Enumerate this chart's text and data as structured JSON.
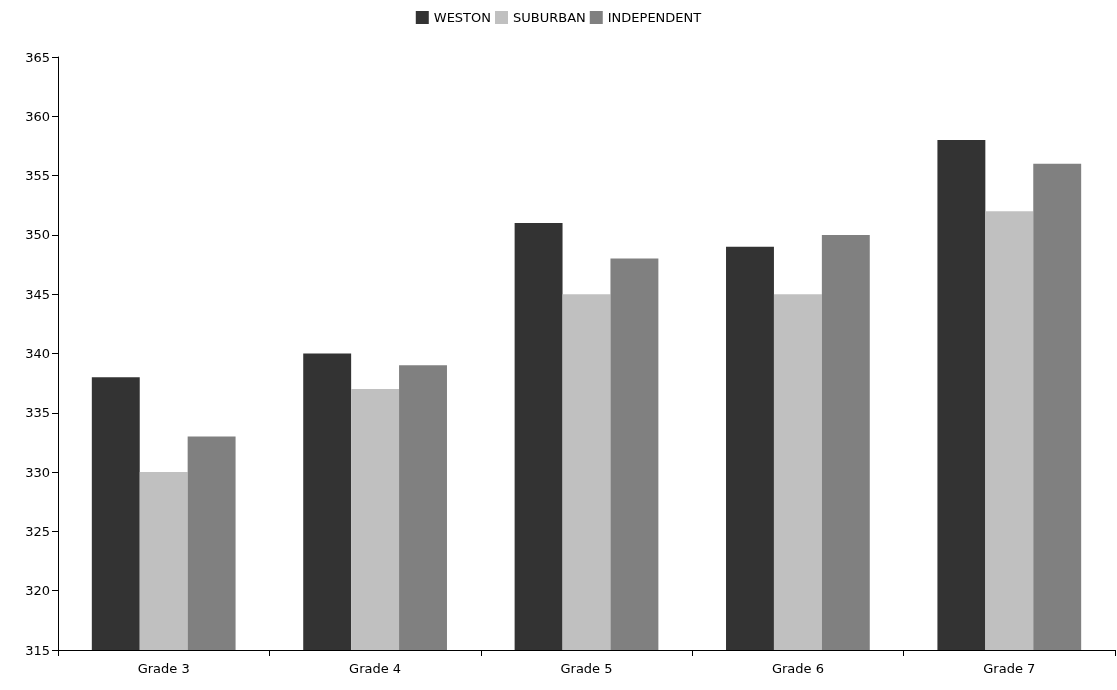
{
  "chart_data": {
    "type": "bar",
    "categories": [
      "Grade 3",
      "Grade 4",
      "Grade 5",
      "Grade 6",
      "Grade 7"
    ],
    "series": [
      {
        "name": "WESTON",
        "color": "#333333",
        "values": [
          338,
          340,
          351,
          349,
          358
        ]
      },
      {
        "name": "SUBURBAN",
        "color": "#c0c0c0",
        "values": [
          330,
          337,
          345,
          345,
          352
        ]
      },
      {
        "name": "INDEPENDENT",
        "color": "#808080",
        "values": [
          333,
          339,
          348,
          350,
          356
        ]
      }
    ],
    "ylim": [
      315,
      365
    ],
    "yticks": [
      315,
      320,
      325,
      330,
      335,
      340,
      345,
      350,
      355,
      360,
      365
    ],
    "grid": false,
    "legend": "top"
  }
}
